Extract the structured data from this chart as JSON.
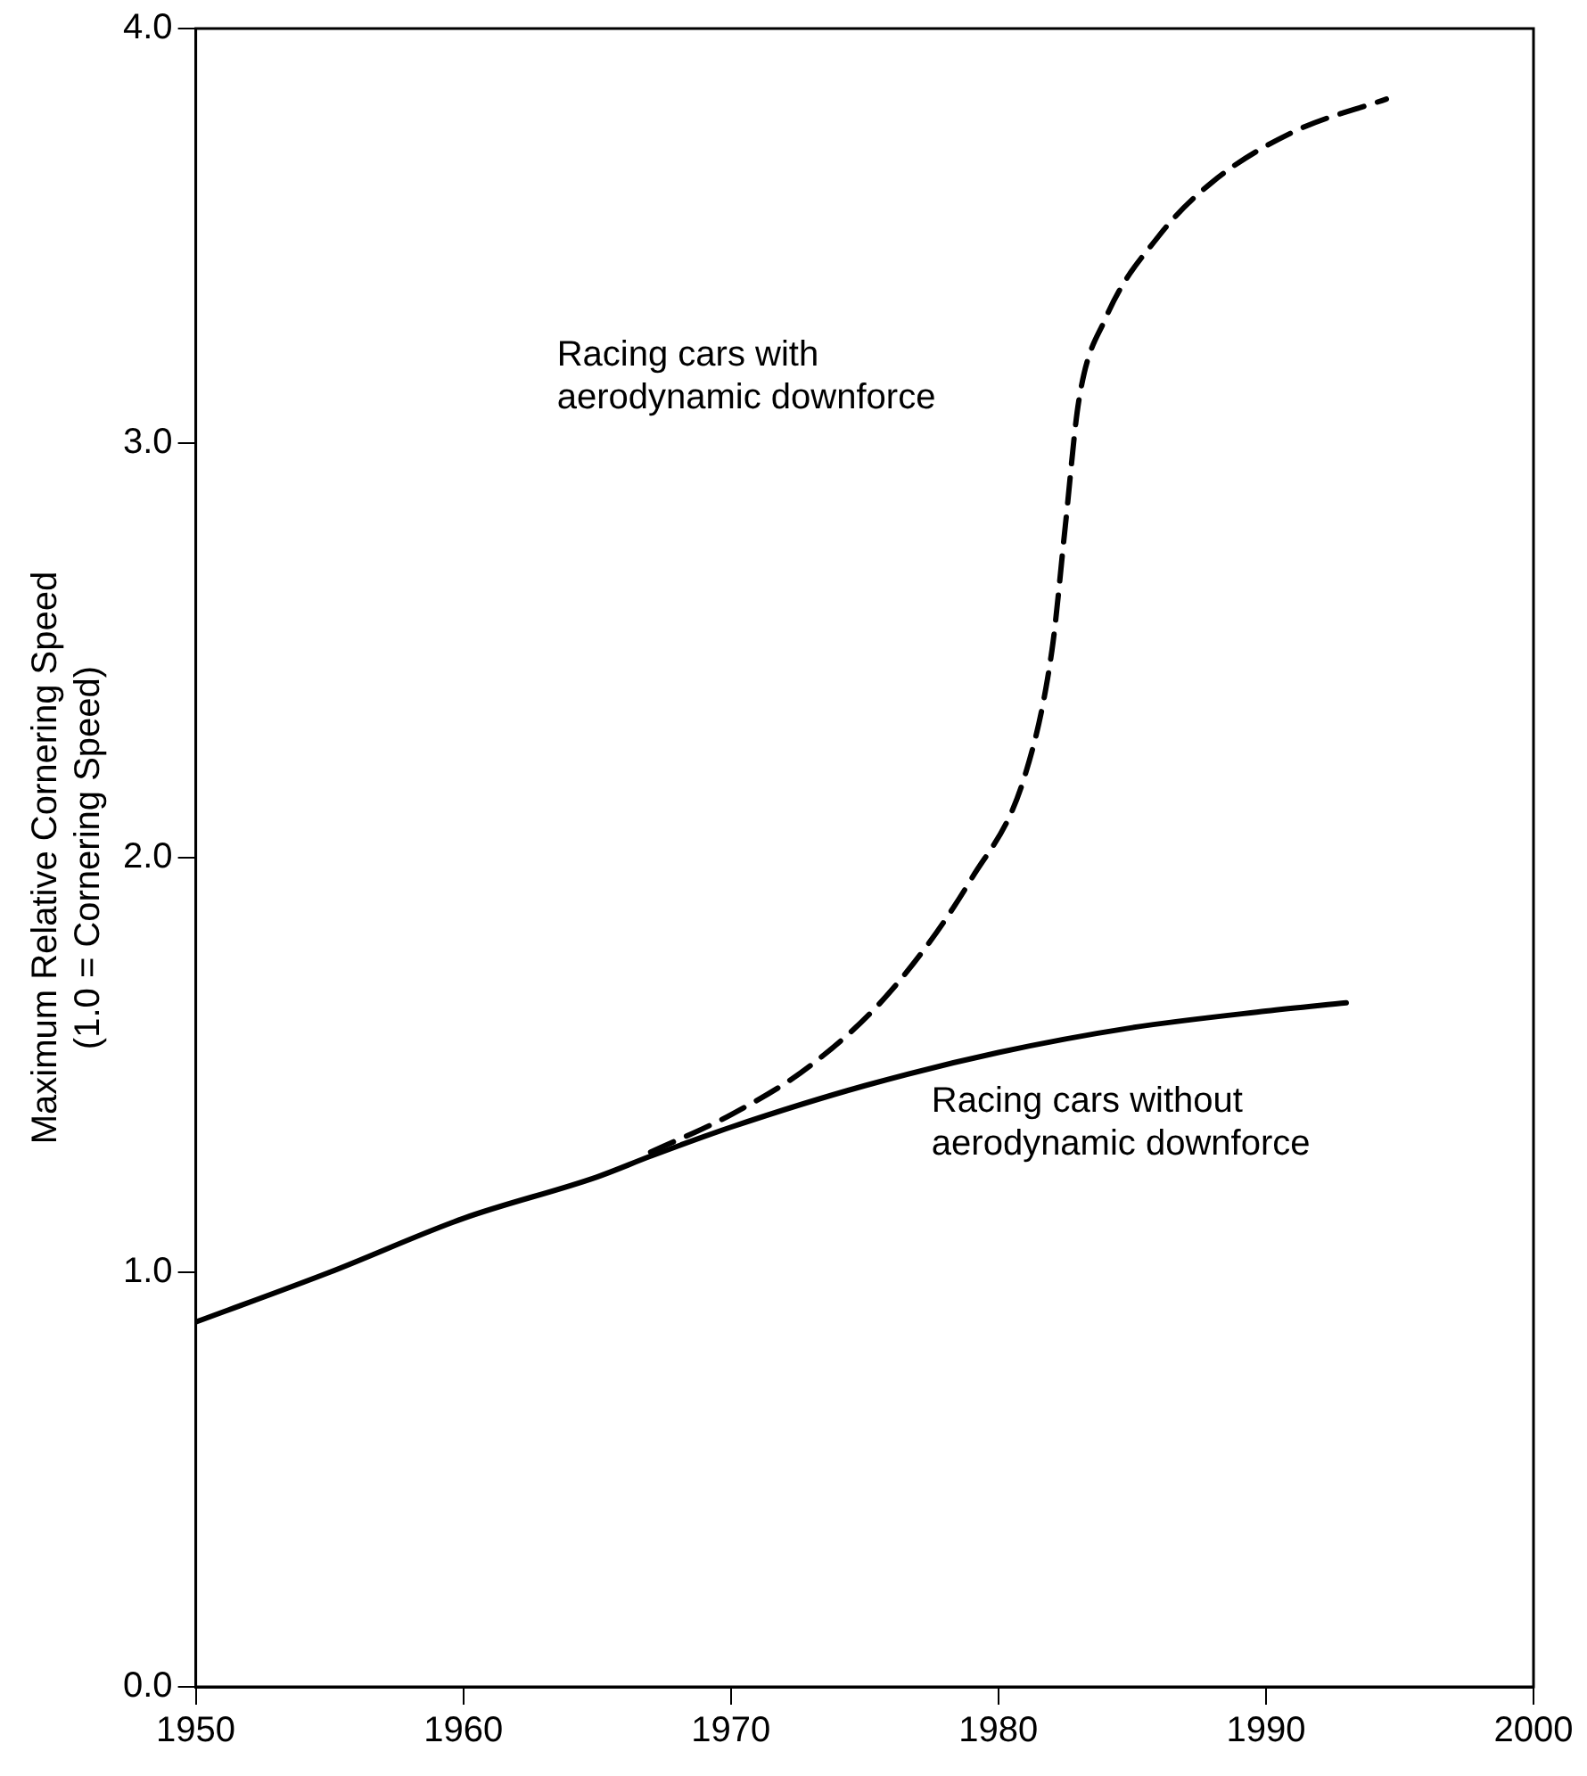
{
  "chart_data": {
    "type": "line",
    "ylabel": "Maximum Relative Cornering Speed\n(1.0 = Cornering Speed)",
    "xlim": [
      1950,
      2000
    ],
    "xticks": [
      1950,
      1960,
      1970,
      1980,
      1990,
      2000
    ],
    "ylim": [
      0,
      4
    ],
    "yticks": [
      {
        "value": 0,
        "label": "0.0"
      },
      {
        "value": 1,
        "label": "1.0"
      },
      {
        "value": 2,
        "label": "2.0"
      },
      {
        "value": 3,
        "label": "3.0"
      },
      {
        "value": 4,
        "label": "4.0"
      }
    ],
    "grid": false,
    "legend": false,
    "marker": "none",
    "series": [
      {
        "color": "#000000",
        "line_style": "solid",
        "x": [
          1950,
          1955,
          1960,
          1965,
          1967,
          1970,
          1975,
          1980,
          1985,
          1990,
          1993
        ],
        "values": [
          0.88,
          1.0,
          1.13,
          1.23,
          1.28,
          1.35,
          1.45,
          1.53,
          1.59,
          1.63,
          1.65
        ]
      },
      {
        "color": "#000000",
        "line_style": "dashed",
        "x": [
          1967,
          1970,
          1973,
          1976,
          1979,
          1981,
          1982,
          1982.5,
          1983,
          1984,
          1986,
          1988,
          1991,
          1994.5
        ],
        "values": [
          1.29,
          1.38,
          1.5,
          1.68,
          1.95,
          2.2,
          2.5,
          2.8,
          3.1,
          3.3,
          3.5,
          3.63,
          3.75,
          3.83
        ]
      }
    ],
    "annotations": [
      "Racing cars with\naerodynamic downforce",
      "Racing cars without\naerodynamic downforce"
    ]
  }
}
